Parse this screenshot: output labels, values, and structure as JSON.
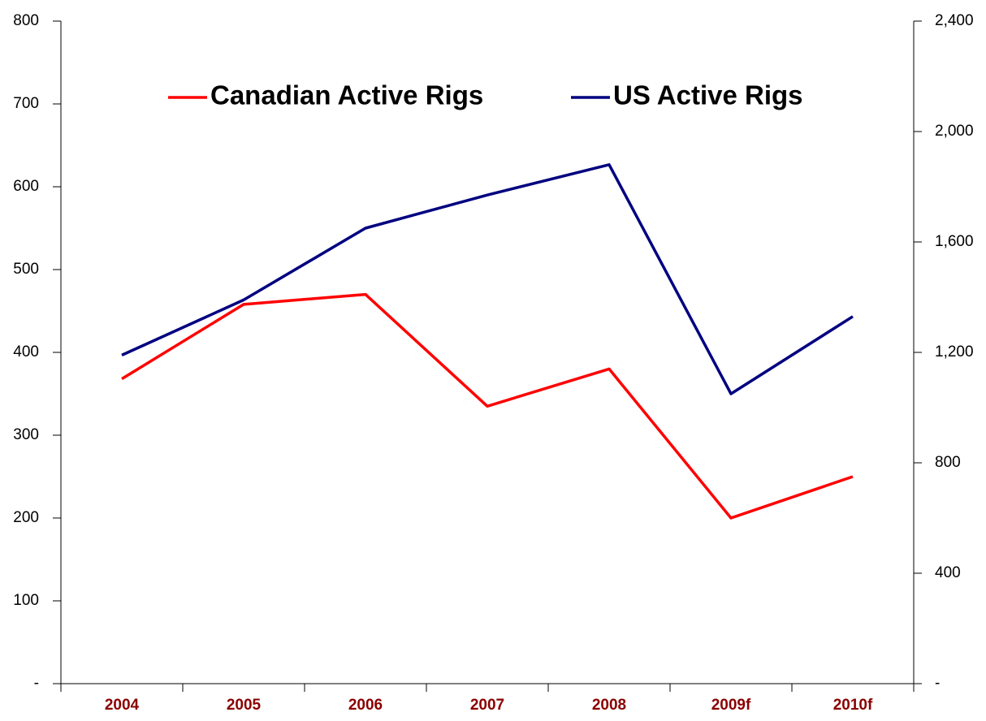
{
  "chart_data": {
    "type": "line",
    "categories": [
      "2004",
      "2005",
      "2006",
      "2007",
      "2008",
      "2009f",
      "2010f"
    ],
    "series": [
      {
        "name": "Canadian Active Rigs",
        "color": "#ff0000",
        "values": [
          368,
          458,
          470,
          335,
          380,
          200,
          250
        ]
      },
      {
        "name": "US Active Rigs",
        "color": "#000080",
        "axis": "y2",
        "values": [
          1190,
          1390,
          1650,
          1770,
          1880,
          1050,
          1330
        ]
      }
    ],
    "ylim": [
      0,
      800
    ],
    "yticks": [
      {
        "value": 0,
        "label": "-"
      },
      100,
      200,
      300,
      400,
      500,
      600,
      700,
      800
    ],
    "y2lim": [
      0,
      2400
    ],
    "y2ticks": [
      {
        "value": 0,
        "label": "-"
      },
      400,
      800,
      {
        "value": 1200,
        "label": "1,200"
      },
      {
        "value": 1600,
        "label": "1,600"
      },
      {
        "value": 2000,
        "label": "2,000"
      },
      {
        "value": 2400,
        "label": "2,400"
      }
    ],
    "legend": "top",
    "grid": false
  }
}
